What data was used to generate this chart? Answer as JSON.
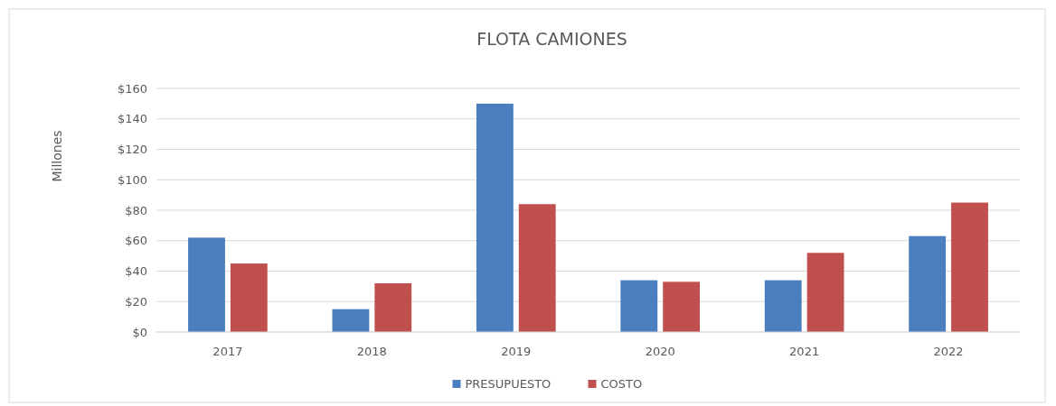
{
  "chart_data": {
    "type": "bar",
    "title": "FLOTA CAMIONES",
    "ylabel": "Millones",
    "categories": [
      "2017",
      "2018",
      "2019",
      "2020",
      "2021",
      "2022"
    ],
    "series": [
      {
        "name": "PRESUPUESTO",
        "color": "#4a7ebf",
        "values": [
          62,
          15,
          150,
          34,
          34,
          63
        ]
      },
      {
        "name": "COSTO",
        "color": "#c0504d",
        "values": [
          45,
          32,
          84,
          33,
          52,
          85
        ]
      }
    ],
    "ylim": [
      0,
      160
    ],
    "yticks": [
      {
        "value": 0,
        "label": "$0"
      },
      {
        "value": 20,
        "label": "$20"
      },
      {
        "value": 40,
        "label": "$40"
      },
      {
        "value": 60,
        "label": "$60"
      },
      {
        "value": 80,
        "label": "$80"
      },
      {
        "value": 100,
        "label": "$100"
      },
      {
        "value": 120,
        "label": "$120"
      },
      {
        "value": 140,
        "label": "$140"
      },
      {
        "value": 160,
        "label": "$160"
      }
    ],
    "grid": "y",
    "legend": "bottom"
  }
}
